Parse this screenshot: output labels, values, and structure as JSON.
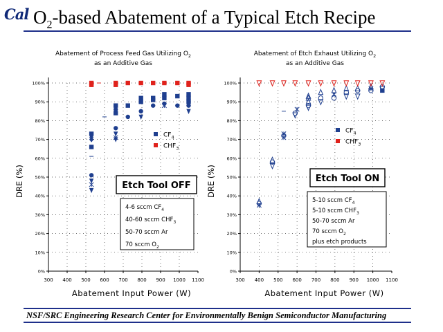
{
  "header": {
    "logo_text": "Cal",
    "title_pre": "O",
    "title_sub": "2",
    "title_post": "-based Abatement of a Typical Etch Recipe"
  },
  "footer": {
    "text": "NSF/SRC Engineering Research Center for Environmentally Benign Semiconductor Manufacturing"
  },
  "colors": {
    "accent": "#1e2f8a",
    "cf4": "#1f3f8f",
    "chf3": "#e0221c"
  },
  "chart_data": [
    {
      "type": "scatter",
      "title_lines": [
        [
          "Abatement of Process Feed Gas Utilizing O",
          "2"
        ],
        [
          "as an Additive Gas",
          ""
        ]
      ],
      "xlabel": "Abatement Input Power (W)",
      "ylabel": "DRE (%)",
      "xlim": [
        300,
        1100
      ],
      "ylim": [
        0,
        100
      ],
      "xticks": [
        300,
        400,
        500,
        600,
        700,
        800,
        900,
        1000,
        1100
      ],
      "yticks": [
        0,
        10,
        20,
        30,
        40,
        50,
        60,
        70,
        80,
        90,
        100
      ],
      "ytick_suffix": "%",
      "grid": true,
      "legend_position": "right-middle",
      "legend": [
        {
          "label": "CF",
          "sub": "4",
          "color": "#1f3f8f"
        },
        {
          "label": "CHF",
          "sub": "3",
          "color": "#e0221c"
        }
      ],
      "tool_label": "Etch Tool OFF",
      "conditions": [
        [
          "4-6 sccm CF",
          "4"
        ],
        [
          "40-60 sccm CHF",
          "3"
        ],
        [
          "50-70 sccm Ar",
          ""
        ],
        [
          "70 sccm O",
          "2"
        ]
      ],
      "series": [
        {
          "name": "CF4",
          "color": "#1f3f8f",
          "points": [
            [
              530,
              66,
              "s"
            ],
            [
              530,
              70,
              "d"
            ],
            [
              530,
              72,
              "t"
            ],
            [
              530,
              73,
              "s"
            ],
            [
              530,
              51,
              "c"
            ],
            [
              530,
              48,
              "v"
            ],
            [
              530,
              46,
              "x"
            ],
            [
              530,
              43,
              "v"
            ],
            [
              660,
              84,
              "s"
            ],
            [
              660,
              86,
              "c"
            ],
            [
              660,
              88,
              "s"
            ],
            [
              660,
              76,
              "c"
            ],
            [
              660,
              73,
              "v"
            ],
            [
              660,
              71,
              "x"
            ],
            [
              660,
              70,
              "v"
            ],
            [
              725,
              82,
              "c"
            ],
            [
              725,
              88,
              "s"
            ],
            [
              795,
              82,
              "v"
            ],
            [
              795,
              85,
              "c"
            ],
            [
              795,
              90,
              "s"
            ],
            [
              795,
              92,
              "s"
            ],
            [
              860,
              88,
              "c"
            ],
            [
              860,
              91,
              "s"
            ],
            [
              860,
              92,
              "s"
            ],
            [
              920,
              88,
              "x"
            ],
            [
              920,
              89,
              "c"
            ],
            [
              920,
              92,
              "s"
            ],
            [
              920,
              94,
              "s"
            ],
            [
              990,
              88,
              "c"
            ],
            [
              990,
              93,
              "s"
            ],
            [
              1050,
              85,
              "v"
            ],
            [
              1050,
              88,
              "c"
            ],
            [
              1050,
              90,
              "s"
            ],
            [
              1050,
              92,
              "s"
            ],
            [
              1050,
              94,
              "s"
            ]
          ]
        },
        {
          "name": "CHF3",
          "color": "#e0221c",
          "points": [
            [
              530,
              100,
              "s"
            ],
            [
              530,
              99,
              "s"
            ],
            [
              570,
              100,
              "dash"
            ],
            [
              660,
              100,
              "s"
            ],
            [
              660,
              99,
              "s"
            ],
            [
              725,
              100,
              "s"
            ],
            [
              795,
              100,
              "s"
            ],
            [
              860,
              100,
              "s"
            ],
            [
              920,
              100,
              "s"
            ],
            [
              990,
              100,
              "s"
            ],
            [
              1050,
              100,
              "s"
            ],
            [
              1050,
              99,
              "s"
            ]
          ]
        },
        {
          "name": "CF4 minor",
          "color": "#1f3f8f",
          "points": [
            [
              530,
              61,
              "dash"
            ],
            [
              600,
              82,
              "dash"
            ]
          ]
        }
      ]
    },
    {
      "type": "scatter",
      "title_lines": [
        [
          "Abatement of Etch Exhaust Utilizing O",
          "2"
        ],
        [
          "as an Additive Gas",
          ""
        ]
      ],
      "xlabel": "Abatement Input Power (W)",
      "ylabel": "DRE (%)",
      "xlim": [
        300,
        1100
      ],
      "ylim": [
        0,
        100
      ],
      "xticks": [
        300,
        400,
        500,
        600,
        700,
        800,
        900,
        1000,
        1100
      ],
      "yticks": [
        0,
        10,
        20,
        30,
        40,
        50,
        60,
        70,
        80,
        90,
        100
      ],
      "ytick_suffix": "%",
      "grid": true,
      "legend_position": "right-middle",
      "legend": [
        {
          "label": "CF",
          "sub": "4",
          "color": "#1f3f8f"
        },
        {
          "label": "CHF",
          "sub": "3",
          "color": "#e0221c"
        }
      ],
      "tool_label": "Etch Tool ON",
      "conditions": [
        [
          "5-10 sccm CF",
          "4"
        ],
        [
          "5-10 sccm CHF",
          "3"
        ],
        [
          "50-70 sccm Ar",
          ""
        ],
        [
          "70 sccm O",
          "2"
        ],
        [
          "plus etch products",
          ""
        ]
      ],
      "series": [
        {
          "name": "CF4",
          "color": "#1f3f8f",
          "points": [
            [
              400,
              37,
              "to"
            ],
            [
              400,
              36,
              "o"
            ],
            [
              400,
              35,
              "x"
            ],
            [
              470,
              58,
              "o"
            ],
            [
              470,
              59,
              "to"
            ],
            [
              470,
              56,
              "vo"
            ],
            [
              530,
              72,
              "o"
            ],
            [
              530,
              73,
              "x"
            ],
            [
              530,
              71,
              "x"
            ],
            [
              530,
              85,
              "dash"
            ],
            [
              590,
              84,
              "o"
            ],
            [
              590,
              83,
              "vo"
            ],
            [
              600,
              86,
              "x"
            ],
            [
              660,
              88,
              "o"
            ],
            [
              660,
              90,
              "to"
            ],
            [
              660,
              87,
              "vo"
            ],
            [
              660,
              92,
              "to"
            ],
            [
              660,
              93,
              "to"
            ],
            [
              725,
              90,
              "vo"
            ],
            [
              725,
              92,
              "o"
            ],
            [
              725,
              95,
              "to"
            ],
            [
              795,
              92,
              "o"
            ],
            [
              795,
              94,
              "x"
            ],
            [
              795,
              96,
              "to"
            ],
            [
              860,
              93,
              "vo"
            ],
            [
              860,
              95,
              "o"
            ],
            [
              860,
              97,
              "to"
            ],
            [
              920,
              93,
              "vo"
            ],
            [
              920,
              96,
              "o"
            ],
            [
              920,
              97,
              "to"
            ],
            [
              990,
              96,
              "o"
            ],
            [
              990,
              97,
              "x"
            ],
            [
              990,
              98,
              "to"
            ],
            [
              1050,
              96,
              "s"
            ],
            [
              1050,
              97,
              "vo"
            ],
            [
              1050,
              98,
              "o"
            ]
          ]
        },
        {
          "name": "CHF3",
          "color": "#e0221c",
          "points": [
            [
              400,
              100,
              "vo"
            ],
            [
              470,
              100,
              "vo"
            ],
            [
              530,
              100,
              "vo"
            ],
            [
              590,
              100,
              "vo"
            ],
            [
              660,
              100,
              "vo"
            ],
            [
              725,
              100,
              "vo"
            ],
            [
              795,
              100,
              "vo"
            ],
            [
              860,
              100,
              "vo"
            ],
            [
              920,
              100,
              "vo"
            ],
            [
              990,
              100,
              "vo"
            ],
            [
              1050,
              100,
              "vo"
            ]
          ]
        }
      ]
    }
  ]
}
